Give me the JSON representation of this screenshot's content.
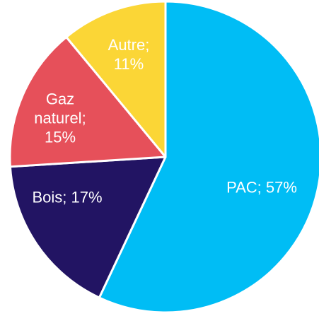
{
  "chart_data": {
    "type": "pie",
    "values": [
      57,
      17,
      15,
      11
    ],
    "value_labels": [
      "PAC; 57%",
      "Bois; 17%",
      "Gaz naturel; 15%",
      "Autre; 11%"
    ],
    "colors": [
      "#00bdf5",
      "#221463",
      "#e6505a",
      "#fbd636"
    ],
    "start_angle": 90,
    "direction": "clockwise"
  }
}
